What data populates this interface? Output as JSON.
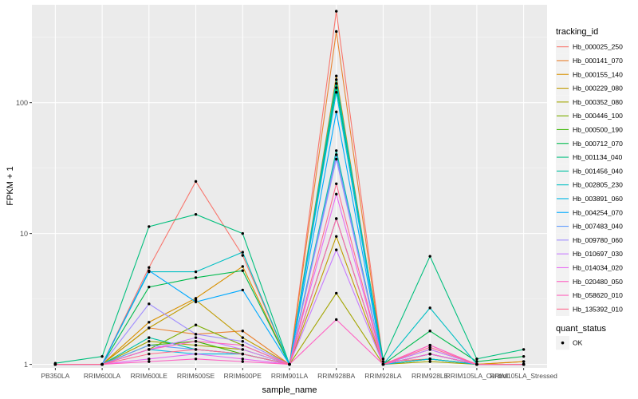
{
  "chart_data": {
    "type": "line",
    "title": "",
    "xlabel": "sample_name",
    "ylabel": "FPKM + 1",
    "y_scale": "log10",
    "ylim": [
      0.94,
      560
    ],
    "y_ticks": [
      1,
      10,
      100
    ],
    "y_tick_labels": [
      "1",
      "10",
      "100"
    ],
    "grid": true,
    "legend_position": "right",
    "categories": [
      "PB350LA",
      "RRIM600LA",
      "RRIM600LE",
      "RRIM600SE",
      "RRIM600PE",
      "RRIM901LA",
      "RRIM928BA",
      "RRIM928LA",
      "RRIM928LE",
      "RRIM105LA_Control",
      "RRIM105LA_Stressed"
    ],
    "legend": {
      "title": "tracking_id",
      "quant_title": "quant_status",
      "quant_entries": [
        "OK"
      ]
    },
    "series": [
      {
        "name": "Hb_000025_250",
        "color": "#F8766D",
        "values": [
          1.0,
          1.0,
          5.5,
          25.0,
          6.8,
          1.0,
          500.0,
          1.05,
          1.1,
          1.0,
          1.05
        ]
      },
      {
        "name": "Hb_000141_070",
        "color": "#EA8331",
        "values": [
          1.0,
          1.0,
          1.9,
          1.7,
          1.8,
          1.0,
          350.0,
          1.0,
          1.2,
          1.0,
          1.0
        ]
      },
      {
        "name": "Hb_000155_140",
        "color": "#D89000",
        "values": [
          1.0,
          1.0,
          2.1,
          3.2,
          5.6,
          1.0,
          160.0,
          1.0,
          1.3,
          1.0,
          1.05
        ]
      },
      {
        "name": "Hb_000229_080",
        "color": "#C09B00",
        "values": [
          1.0,
          1.0,
          1.9,
          3.1,
          1.6,
          1.0,
          9.5,
          1.0,
          1.1,
          1.0,
          1.0
        ]
      },
      {
        "name": "Hb_000352_080",
        "color": "#A3A500",
        "values": [
          1.0,
          1.0,
          1.5,
          1.4,
          1.3,
          1.0,
          3.5,
          1.0,
          1.05,
          1.0,
          1.0
        ]
      },
      {
        "name": "Hb_000446_100",
        "color": "#7CAE00",
        "values": [
          1.0,
          1.0,
          1.3,
          2.0,
          1.4,
          1.0,
          40.0,
          1.0,
          1.1,
          1.0,
          1.0
        ]
      },
      {
        "name": "Hb_000500_190",
        "color": "#39B600",
        "values": [
          1.0,
          1.0,
          1.4,
          1.5,
          1.2,
          1.0,
          13.0,
          1.0,
          1.1,
          1.0,
          1.0
        ]
      },
      {
        "name": "Hb_000712_070",
        "color": "#00BB4E",
        "values": [
          1.0,
          1.0,
          3.9,
          4.6,
          5.2,
          1.0,
          140.0,
          1.0,
          1.8,
          1.05,
          1.15
        ]
      },
      {
        "name": "Hb_001134_040",
        "color": "#00BF7D",
        "values": [
          1.02,
          1.15,
          11.3,
          14.0,
          10.0,
          1.0,
          130.0,
          1.1,
          6.7,
          1.1,
          1.3
        ]
      },
      {
        "name": "Hb_001456_040",
        "color": "#00C1A3",
        "values": [
          1.0,
          1.0,
          1.6,
          1.3,
          1.2,
          1.0,
          43.0,
          1.0,
          1.2,
          1.0,
          1.0
        ]
      },
      {
        "name": "Hb_002805_230",
        "color": "#00BFC4",
        "values": [
          1.0,
          1.0,
          5.1,
          5.1,
          7.2,
          1.0,
          150.0,
          1.0,
          2.7,
          1.0,
          1.0
        ]
      },
      {
        "name": "Hb_003891_060",
        "color": "#00B8E7",
        "values": [
          1.0,
          1.0,
          1.3,
          1.2,
          1.2,
          1.0,
          120.0,
          1.0,
          1.1,
          1.0,
          1.0
        ]
      },
      {
        "name": "Hb_004254_070",
        "color": "#00A9FF",
        "values": [
          1.0,
          1.0,
          5.2,
          3.0,
          3.7,
          1.0,
          85.0,
          1.0,
          1.2,
          1.0,
          1.0
        ]
      },
      {
        "name": "Hb_007483_040",
        "color": "#619CFF",
        "values": [
          1.0,
          1.0,
          1.4,
          1.3,
          1.2,
          1.0,
          40.0,
          1.0,
          1.2,
          1.0,
          1.0
        ]
      },
      {
        "name": "Hb_009780_060",
        "color": "#9F8CFF",
        "values": [
          1.0,
          1.0,
          2.9,
          1.7,
          1.5,
          1.0,
          37.0,
          1.0,
          1.3,
          1.0,
          1.0
        ]
      },
      {
        "name": "Hb_010697_030",
        "color": "#C77CFF",
        "values": [
          1.0,
          1.0,
          1.3,
          1.6,
          1.3,
          1.0,
          7.5,
          1.0,
          1.3,
          1.0,
          1.0
        ]
      },
      {
        "name": "Hb_014034_020",
        "color": "#E76BF3",
        "values": [
          1.0,
          1.0,
          1.1,
          1.2,
          1.1,
          1.0,
          20.0,
          1.0,
          1.4,
          1.0,
          1.0
        ]
      },
      {
        "name": "Hb_020480_050",
        "color": "#FF61C3",
        "values": [
          1.0,
          1.0,
          1.05,
          1.1,
          1.05,
          1.0,
          2.2,
          1.0,
          1.2,
          1.0,
          1.0
        ]
      },
      {
        "name": "Hb_058620_010",
        "color": "#FF62BC",
        "values": [
          1.0,
          1.0,
          1.3,
          1.5,
          1.4,
          1.0,
          13.0,
          1.0,
          1.4,
          1.0,
          1.0
        ]
      },
      {
        "name": "Hb_135392_010",
        "color": "#FF6C91",
        "values": [
          1.0,
          1.0,
          1.2,
          1.3,
          1.2,
          1.0,
          24.0,
          1.0,
          1.35,
          1.0,
          1.0
        ]
      }
    ]
  }
}
